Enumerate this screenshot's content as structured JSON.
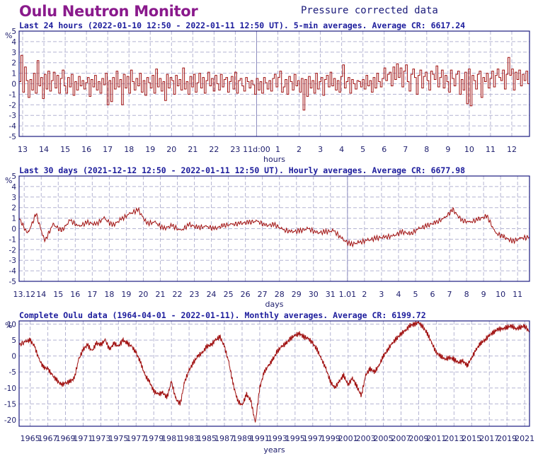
{
  "header": {
    "title": "Oulu Neutron Monitor",
    "subtitle": "Pressure corrected data"
  },
  "colors": {
    "line": "#a01010",
    "grid": "#b4b4d2",
    "frame": "#1c1c80",
    "title": "#8a1a8c",
    "caption": "#1c1c9c"
  },
  "chart_data": [
    {
      "type": "line",
      "caption": "Last 24 hours (2022-01-10 12:50 - 2022-01-11 12:50 UT). 5-min averages. Average CR: 6617.24",
      "ylabel": "%",
      "xlabel": "hours",
      "ylim": [
        -5,
        5
      ],
      "yticks": [
        -5,
        -4,
        -3,
        -2,
        -1,
        0,
        1,
        2,
        3,
        4,
        5
      ],
      "xlim": [
        0,
        288
      ],
      "xticks": [
        {
          "x": 2,
          "label": "13"
        },
        {
          "x": 14,
          "label": "14"
        },
        {
          "x": 26,
          "label": "15"
        },
        {
          "x": 38,
          "label": "16"
        },
        {
          "x": 50,
          "label": "17"
        },
        {
          "x": 62,
          "label": "18"
        },
        {
          "x": 74,
          "label": "19"
        },
        {
          "x": 86,
          "label": "20"
        },
        {
          "x": 98,
          "label": "21"
        },
        {
          "x": 110,
          "label": "22"
        },
        {
          "x": 122,
          "label": "23"
        },
        {
          "x": 134,
          "label": "11d:00"
        },
        {
          "x": 146,
          "label": "1"
        },
        {
          "x": 158,
          "label": "2"
        },
        {
          "x": 170,
          "label": "3"
        },
        {
          "x": 182,
          "label": "4"
        },
        {
          "x": 194,
          "label": "5"
        },
        {
          "x": 206,
          "label": "6"
        },
        {
          "x": 218,
          "label": "7"
        },
        {
          "x": 230,
          "label": "8"
        },
        {
          "x": 242,
          "label": "9"
        },
        {
          "x": 254,
          "label": "10"
        },
        {
          "x": 266,
          "label": "11"
        },
        {
          "x": 278,
          "label": "12"
        }
      ],
      "marker_x": 134,
      "series_style": "step",
      "values": [
        0.2,
        2.7,
        -0.8,
        1.6,
        0.3,
        -1.3,
        0.4,
        -0.6,
        1.0,
        -0.9,
        2.2,
        -0.2,
        0.6,
        -1.4,
        0.9,
        -0.5,
        1.2,
        -0.7,
        0.3,
        1.1,
        -0.4,
        0.8,
        -0.9,
        0.5,
        1.3,
        -0.2,
        -0.9,
        0.6,
        -0.3,
        0.9,
        -1.1,
        0.2,
        -0.6,
        0.7,
        -0.2,
        0.3,
        -0.5,
        0.1,
        0.6,
        -1.2,
        0.4,
        -0.3,
        0.8,
        -0.6,
        0.2,
        -0.9,
        0.5,
        -0.1,
        1.0,
        -2.0,
        0.3,
        -1.7,
        0.6,
        -0.5,
        1.2,
        -0.3,
        0.4,
        -2.0,
        0.9,
        -0.4,
        0.7,
        -0.9,
        1.3,
        0.2,
        -0.6,
        0.5,
        -0.2,
        1.0,
        -0.8,
        0.3,
        -1.1,
        0.6,
        0.1,
        -0.4,
        0.8,
        -0.9,
        1.4,
        -0.3,
        0.5,
        -0.7,
        0.2,
        -1.6,
        0.9,
        -0.4,
        0.6,
        0.3,
        -1.0,
        0.8,
        -0.2,
        0.4,
        -0.6,
        1.5,
        -0.5,
        0.2,
        -1.0,
        0.7,
        -0.3,
        0.9,
        -0.8,
        0.1,
        1.0,
        -0.4,
        0.6,
        -0.9,
        0.3,
        1.1,
        -0.2,
        0.5,
        -0.7,
        0.8,
        0.0,
        -0.6,
        0.9,
        -0.3,
        0.4,
        0.6,
        -0.8,
        0.2,
        0.7,
        -0.5,
        1.1,
        -0.9,
        0.3,
        0.5,
        -0.2,
        -0.7,
        0.6,
        0.2,
        -0.4,
        0.3,
        -0.1,
        -1.0,
        0.5,
        -0.6,
        0.2,
        -0.9,
        0.6,
        0.1,
        -0.5,
        0.3,
        -0.7,
        0.5,
        0.9,
        -0.3,
        0.6,
        1.2,
        -0.8,
        -0.3,
        0.4,
        -1.0,
        0.7,
        0.2,
        -0.6,
        0.9,
        -0.2,
        0.3,
        -0.8,
        0.5,
        -2.5,
        0.4,
        -1.2,
        0.7,
        -0.4,
        0.3,
        -0.9,
        1.0,
        -0.5,
        0.2,
        0.6,
        -1.1,
        0.4,
        0.8,
        -0.3,
        1.1,
        -0.2,
        0.5,
        -0.6,
        0.3,
        -0.8,
        0.7,
        1.8,
        -0.4,
        0.2,
        0.6,
        -0.9,
        0.4,
        0.0,
        -0.5,
        0.3,
        0.2,
        -0.3,
        0.4,
        -0.5,
        0.8,
        -0.2,
        0.3,
        -0.8,
        0.6,
        -0.4,
        1.0,
        0.2,
        -0.3,
        0.5,
        1.5,
        0.3,
        0.9,
        1.1,
        -0.2,
        1.6,
        0.4,
        1.9,
        0.6,
        1.5,
        -0.3,
        1.2,
        1.8,
        0.2,
        -0.7,
        0.9,
        1.4,
        0.6,
        -1.0,
        0.8,
        1.3,
        -0.4,
        0.7,
        1.1,
        0.3,
        -0.6,
        1.2,
        0.9,
        0.4,
        1.7,
        -0.3,
        0.6,
        1.3,
        -0.4,
        0.8,
        0.2,
        -0.8,
        1.3,
        0.5,
        -0.2,
        0.9,
        1.2,
        -1.0,
        0.4,
        -0.6,
        1.1,
        -1.9,
        1.4,
        -2.1,
        0.8,
        0.3,
        -0.5,
        0.9,
        1.2,
        -1.3,
        0.6,
        0.2,
        1.0,
        -0.4,
        0.5,
        1.2,
        -0.3,
        0.8,
        1.4,
        0.6,
        0.3,
        1.3,
        -0.5,
        0.9,
        2.5,
        0.8,
        1.4,
        -0.6,
        1.1,
        0.4,
        1.3,
        -0.2,
        0.9,
        0.3,
        1.2,
        0.0
      ]
    },
    {
      "type": "line",
      "caption": "Last 30 days (2021-12-12 12:50 - 2022-01-11 12:50 UT). Hourly averages. Average CR: 6677.98",
      "ylabel": "%",
      "xlabel": "days",
      "ylim": [
        -5,
        5
      ],
      "yticks": [
        -5,
        -4,
        -3,
        -2,
        -1,
        0,
        1,
        2,
        3,
        4,
        5
      ],
      "xlim": [
        0,
        30
      ],
      "xticks": [
        {
          "x": 0.3,
          "label": "13.12"
        },
        {
          "x": 1.3,
          "label": "14"
        },
        {
          "x": 2.3,
          "label": "15"
        },
        {
          "x": 3.3,
          "label": "16"
        },
        {
          "x": 4.3,
          "label": "17"
        },
        {
          "x": 5.3,
          "label": "18"
        },
        {
          "x": 6.3,
          "label": "19"
        },
        {
          "x": 7.3,
          "label": "20"
        },
        {
          "x": 8.3,
          "label": "21"
        },
        {
          "x": 9.3,
          "label": "22"
        },
        {
          "x": 10.3,
          "label": "23"
        },
        {
          "x": 11.3,
          "label": "24"
        },
        {
          "x": 12.3,
          "label": "25"
        },
        {
          "x": 13.3,
          "label": "26"
        },
        {
          "x": 14.3,
          "label": "27"
        },
        {
          "x": 15.3,
          "label": "28"
        },
        {
          "x": 16.3,
          "label": "29"
        },
        {
          "x": 17.3,
          "label": "30"
        },
        {
          "x": 18.3,
          "label": "31"
        },
        {
          "x": 19.3,
          "label": "1.01"
        },
        {
          "x": 20.3,
          "label": "2"
        },
        {
          "x": 21.3,
          "label": "3"
        },
        {
          "x": 22.3,
          "label": "4"
        },
        {
          "x": 23.3,
          "label": "5"
        },
        {
          "x": 24.3,
          "label": "6"
        },
        {
          "x": 25.3,
          "label": "7"
        },
        {
          "x": 26.3,
          "label": "8"
        },
        {
          "x": 27.3,
          "label": "9"
        },
        {
          "x": 28.3,
          "label": "10"
        },
        {
          "x": 29.3,
          "label": "11"
        }
      ],
      "marker_x": 19.3,
      "series_style": "line",
      "x": [
        0,
        0.5,
        1,
        1.5,
        2,
        2.5,
        3,
        3.5,
        4,
        4.5,
        5,
        5.5,
        6,
        6.5,
        7,
        7.5,
        8,
        8.5,
        9,
        9.5,
        10,
        10.5,
        11,
        11.5,
        12,
        12.5,
        13,
        13.5,
        14,
        14.5,
        15,
        15.5,
        16,
        16.5,
        17,
        17.5,
        18,
        18.5,
        19,
        19.5,
        20,
        20.5,
        21,
        21.5,
        22,
        22.5,
        23,
        23.5,
        24,
        24.5,
        25,
        25.5,
        26,
        26.5,
        27,
        27.5,
        28,
        28.5,
        29,
        29.5,
        30
      ],
      "values": [
        1.0,
        -0.5,
        1.4,
        -1.2,
        0.4,
        -0.2,
        0.8,
        0.2,
        0.6,
        0.4,
        1.0,
        0.3,
        0.9,
        1.4,
        1.8,
        0.5,
        0.6,
        0.0,
        0.3,
        -0.2,
        0.4,
        0.1,
        0.2,
        0.0,
        0.3,
        0.4,
        0.5,
        0.6,
        0.7,
        0.3,
        0.4,
        -0.1,
        -0.3,
        -0.2,
        0.0,
        -0.4,
        -0.3,
        -0.2,
        -1.0,
        -1.5,
        -1.3,
        -1.1,
        -0.9,
        -0.8,
        -0.7,
        -0.3,
        -0.5,
        0.0,
        0.3,
        0.6,
        1.0,
        1.8,
        0.8,
        0.6,
        0.9,
        1.2,
        -0.4,
        -0.8,
        -1.2,
        -0.9,
        -0.8
      ]
    },
    {
      "type": "line",
      "caption": "Complete Oulu data (1964-04-01 - 2022-01-11). Monthly averages. Average CR: 6199.72",
      "ylabel": "%",
      "xlabel": "years",
      "ylim": [
        -22,
        11
      ],
      "yticks": [
        -20,
        -15,
        -10,
        -5,
        0,
        5,
        10
      ],
      "xlim": [
        1964.25,
        2022.05
      ],
      "xticks": [
        "1965",
        "1967",
        "1969",
        "1971",
        "1973",
        "1975",
        "1977",
        "1979",
        "1981",
        "1983",
        "1985",
        "1987",
        "1989",
        "1991",
        "1993",
        "1995",
        "1997",
        "1999",
        "2001",
        "2003",
        "2005",
        "2007",
        "2009",
        "2011",
        "2013",
        "2015",
        "2017",
        "2019",
        "2021"
      ],
      "series_style": "line",
      "x": [
        1964.25,
        1965,
        1965.5,
        1966,
        1966.5,
        1967,
        1967.5,
        1968,
        1968.5,
        1969,
        1969.5,
        1970,
        1970.5,
        1971,
        1971.5,
        1972,
        1972.5,
        1973,
        1973.5,
        1974,
        1974.5,
        1975,
        1975.5,
        1976,
        1976.5,
        1977,
        1977.5,
        1978,
        1978.5,
        1979,
        1979.5,
        1980,
        1980.5,
        1981,
        1981.5,
        1982,
        1982.5,
        1983,
        1983.5,
        1984,
        1984.5,
        1985,
        1985.5,
        1986,
        1986.5,
        1987,
        1987.5,
        1988,
        1988.5,
        1989,
        1989.5,
        1990,
        1990.5,
        1991,
        1991.5,
        1992,
        1992.5,
        1993,
        1993.5,
        1994,
        1994.5,
        1995,
        1995.5,
        1996,
        1996.5,
        1997,
        1997.5,
        1998,
        1998.5,
        1999,
        1999.5,
        2000,
        2000.5,
        2001,
        2001.5,
        2002,
        2002.5,
        2003,
        2003.5,
        2004,
        2004.5,
        2005,
        2005.5,
        2006,
        2006.5,
        2007,
        2007.5,
        2008,
        2008.5,
        2009,
        2009.5,
        2010,
        2010.5,
        2011,
        2011.5,
        2012,
        2012.5,
        2013,
        2013.5,
        2014,
        2014.5,
        2015,
        2015.5,
        2016,
        2016.5,
        2017,
        2017.5,
        2018,
        2018.5,
        2019,
        2019.5,
        2020,
        2020.5,
        2021,
        2021.5,
        2022.05
      ],
      "values": [
        3.5,
        4.5,
        5.0,
        3.0,
        -1.0,
        -3.5,
        -4.0,
        -6.0,
        -7.5,
        -9.0,
        -8.5,
        -8.0,
        -7.0,
        -1.0,
        2.0,
        3.5,
        1.5,
        4.0,
        3.5,
        5.0,
        2.0,
        4.0,
        3.0,
        5.0,
        4.0,
        3.0,
        1.0,
        -2.0,
        -6.0,
        -8.0,
        -11.0,
        -12.0,
        -11.5,
        -13.0,
        -8.0,
        -13.5,
        -15.0,
        -8.0,
        -4.5,
        -2.0,
        0.0,
        1.0,
        3.0,
        3.5,
        5.0,
        6.0,
        3.0,
        -2.0,
        -9.0,
        -14.0,
        -15.5,
        -12.0,
        -14.0,
        -21.0,
        -10.0,
        -5.0,
        -3.0,
        -1.0,
        1.5,
        3.0,
        4.0,
        5.5,
        6.5,
        7.0,
        6.0,
        5.5,
        4.0,
        2.0,
        -1.0,
        -4.0,
        -8.0,
        -10.0,
        -8.0,
        -6.0,
        -9.0,
        -7.0,
        -9.5,
        -12.5,
        -6.0,
        -4.0,
        -5.0,
        -3.0,
        0.0,
        2.0,
        4.0,
        5.5,
        7.0,
        8.0,
        9.5,
        10.0,
        10.5,
        9.0,
        7.0,
        4.0,
        1.0,
        0.0,
        -1.0,
        -0.5,
        -1.0,
        -2.0,
        -1.5,
        -3.0,
        -0.5,
        2.0,
        4.0,
        5.0,
        6.5,
        7.5,
        8.5,
        8.5,
        9.0,
        9.5,
        8.5,
        9.0,
        9.5,
        7.5
      ]
    }
  ]
}
